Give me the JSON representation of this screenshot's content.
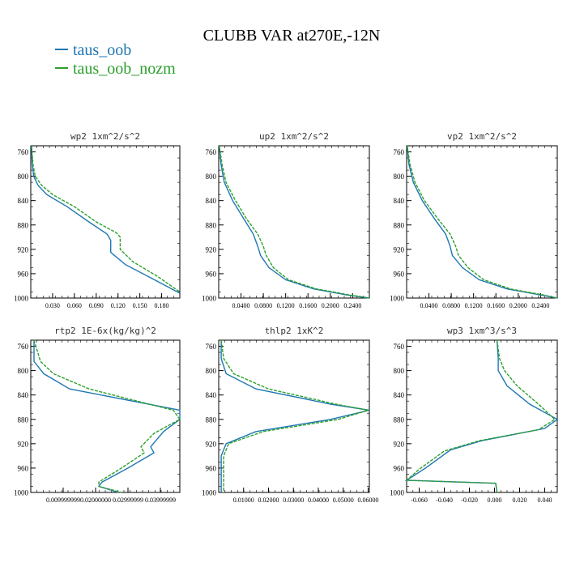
{
  "figure": {
    "title": "CLUBB VAR at270E,-12N",
    "legend": [
      {
        "name": "taus_oob",
        "color": "#1f77b4"
      },
      {
        "name": "taus_oob_nozm",
        "color": "#2ca02c"
      }
    ]
  },
  "chart_data": [
    {
      "type": "line",
      "title": "wp2 1xm^2/s^2",
      "y_ticks": [
        "760",
        "800",
        "840",
        "880",
        "920",
        "960",
        "1000"
      ],
      "x_ticks": [
        "0.030",
        "0.060",
        "0.090",
        "0.120",
        "0.150",
        "0.180"
      ],
      "xlim": [
        0.0,
        0.205
      ],
      "ylim": [
        750,
        1000
      ],
      "y_inverted": true,
      "series": [
        {
          "name": "taus_oob",
          "color": "#1f77b4",
          "dashed": false,
          "x": [
            0.001,
            0.002,
            0.004,
            0.01,
            0.022,
            0.05,
            0.08,
            0.105,
            0.11,
            0.11,
            0.13,
            0.17,
            0.205
          ],
          "y": [
            750,
            780,
            800,
            815,
            830,
            850,
            875,
            895,
            905,
            925,
            945,
            970,
            992
          ]
        },
        {
          "name": "taus_oob_nozm",
          "color": "#2ca02c",
          "dashed": true,
          "x": [
            0.001,
            0.003,
            0.006,
            0.015,
            0.03,
            0.06,
            0.09,
            0.118,
            0.123,
            0.123,
            0.14,
            0.175,
            0.205
          ],
          "y": [
            750,
            780,
            800,
            815,
            830,
            850,
            875,
            893,
            900,
            920,
            940,
            965,
            990
          ]
        }
      ]
    },
    {
      "type": "line",
      "title": "up2 1xm^2/s^2",
      "y_ticks": [
        "760",
        "800",
        "840",
        "880",
        "920",
        "960",
        "1000"
      ],
      "x_ticks": [
        "0.0400",
        "0.0800",
        "0.1200",
        "0.1600",
        "0.2000",
        "0.2400"
      ],
      "xlim": [
        0.0,
        0.27
      ],
      "ylim": [
        750,
        1000
      ],
      "y_inverted": true,
      "series": [
        {
          "name": "taus_oob",
          "color": "#1f77b4",
          "dashed": false,
          "x": [
            0.001,
            0.004,
            0.01,
            0.025,
            0.045,
            0.062,
            0.07,
            0.075,
            0.09,
            0.12,
            0.17,
            0.23,
            0.27
          ],
          "y": [
            750,
            780,
            810,
            840,
            870,
            895,
            915,
            930,
            950,
            970,
            985,
            995,
            1000
          ]
        },
        {
          "name": "taus_oob_nozm",
          "color": "#2ca02c",
          "dashed": true,
          "x": [
            0.001,
            0.006,
            0.013,
            0.03,
            0.05,
            0.07,
            0.08,
            0.085,
            0.098,
            0.125,
            0.175,
            0.235,
            0.27
          ],
          "y": [
            750,
            780,
            810,
            840,
            870,
            895,
            915,
            930,
            950,
            970,
            985,
            995,
            1000
          ]
        }
      ]
    },
    {
      "type": "line",
      "title": "vp2 1xm^2/s^2",
      "y_ticks": [
        "760",
        "800",
        "840",
        "880",
        "920",
        "960",
        "1000"
      ],
      "x_ticks": [
        "0.0400",
        "0.0800",
        "0.1200",
        "0.1600",
        "0.2000",
        "0.2400"
      ],
      "xlim": [
        0.0,
        0.27
      ],
      "ylim": [
        750,
        1000
      ],
      "y_inverted": true,
      "series": [
        {
          "name": "taus_oob",
          "color": "#1f77b4",
          "dashed": false,
          "x": [
            0.001,
            0.004,
            0.012,
            0.028,
            0.05,
            0.07,
            0.078,
            0.082,
            0.1,
            0.13,
            0.18,
            0.24,
            0.27
          ],
          "y": [
            750,
            780,
            810,
            840,
            870,
            895,
            915,
            930,
            950,
            970,
            985,
            995,
            1000
          ]
        },
        {
          "name": "taus_oob_nozm",
          "color": "#2ca02c",
          "dashed": true,
          "x": [
            0.001,
            0.006,
            0.015,
            0.032,
            0.056,
            0.078,
            0.088,
            0.093,
            0.11,
            0.138,
            0.186,
            0.245,
            0.27
          ],
          "y": [
            750,
            780,
            810,
            840,
            870,
            895,
            915,
            930,
            950,
            970,
            985,
            995,
            1000
          ]
        }
      ]
    },
    {
      "type": "line",
      "title": "rtp2 1E-6x(kg/kg)^2",
      "y_ticks": [
        "760",
        "800",
        "840",
        "880",
        "920",
        "960",
        "1000"
      ],
      "x_ticks": [
        "0.009999999",
        "0.02000000",
        "0.02999999",
        "0.03999999"
      ],
      "xlim": [
        0.0,
        0.046
      ],
      "ylim": [
        750,
        1000
      ],
      "y_inverted": true,
      "series": [
        {
          "name": "taus_oob",
          "color": "#1f77b4",
          "dashed": false,
          "x": [
            0.001,
            0.001,
            0.004,
            0.012,
            0.046,
            0.046,
            0.041,
            0.037,
            0.038,
            0.03,
            0.022,
            0.021,
            0.027
          ],
          "y": [
            750,
            785,
            805,
            830,
            865,
            880,
            900,
            925,
            935,
            960,
            983,
            990,
            1000
          ]
        },
        {
          "name": "taus_oob_nozm",
          "color": "#2ca02c",
          "dashed": true,
          "x": [
            0.001,
            0.003,
            0.007,
            0.018,
            0.044,
            0.046,
            0.038,
            0.034,
            0.035,
            0.028,
            0.021,
            0.021,
            0.028
          ],
          "y": [
            750,
            785,
            805,
            830,
            865,
            880,
            903,
            925,
            935,
            960,
            983,
            990,
            1000
          ]
        }
      ]
    },
    {
      "type": "line",
      "title": "thlp2 1xK^2",
      "y_ticks": [
        "760",
        "800",
        "840",
        "880",
        "920",
        "960",
        "1000"
      ],
      "x_ticks": [
        "0.01000",
        "0.02000",
        "0.03000",
        "0.04000",
        "0.05000",
        "0.06000"
      ],
      "xlim": [
        0.0,
        0.0605
      ],
      "ylim": [
        750,
        1000
      ],
      "y_inverted": true,
      "series": [
        {
          "name": "taus_oob",
          "color": "#1f77b4",
          "dashed": false,
          "x": [
            0.001,
            0.001,
            0.003,
            0.015,
            0.045,
            0.0605,
            0.045,
            0.015,
            0.003,
            0.001,
            0.001,
            0.001,
            0.001
          ],
          "y": [
            750,
            780,
            805,
            830,
            855,
            865,
            880,
            900,
            920,
            940,
            960,
            985,
            1000
          ]
        },
        {
          "name": "taus_oob_nozm",
          "color": "#2ca02c",
          "dashed": true,
          "x": [
            0.001,
            0.002,
            0.006,
            0.02,
            0.047,
            0.06,
            0.048,
            0.018,
            0.004,
            0.002,
            0.002,
            0.002,
            0.002
          ],
          "y": [
            750,
            780,
            805,
            830,
            855,
            865,
            880,
            900,
            920,
            940,
            960,
            985,
            1000
          ]
        }
      ]
    },
    {
      "type": "line",
      "title": "wp3 1xm^3/s^3",
      "y_ticks": [
        "760",
        "800",
        "840",
        "880",
        "920",
        "960",
        "1000"
      ],
      "x_ticks": [
        "-0.060",
        "-0.040",
        "-0.020",
        "0.000",
        "0.020",
        "0.040"
      ],
      "xlim": [
        -0.07,
        0.05
      ],
      "ylim": [
        750,
        1000
      ],
      "y_inverted": true,
      "series": [
        {
          "name": "taus_oob",
          "color": "#1f77b4",
          "dashed": false,
          "x": [
            0.002,
            0.003,
            0.003,
            0.01,
            0.028,
            0.05,
            0.04,
            -0.01,
            -0.035,
            -0.055,
            -0.07,
            -0.07,
            0.001,
            0.002
          ],
          "y": [
            750,
            780,
            800,
            825,
            855,
            880,
            895,
            915,
            930,
            960,
            980,
            980,
            985,
            1000
          ]
        },
        {
          "name": "taus_oob_nozm",
          "color": "#2ca02c",
          "dashed": true,
          "x": [
            0.002,
            0.004,
            0.008,
            0.018,
            0.035,
            0.048,
            0.035,
            -0.012,
            -0.04,
            -0.06,
            -0.07,
            -0.07,
            0.001,
            0.002
          ],
          "y": [
            750,
            780,
            800,
            825,
            855,
            880,
            897,
            915,
            932,
            962,
            980,
            980,
            985,
            1000
          ]
        }
      ]
    }
  ]
}
